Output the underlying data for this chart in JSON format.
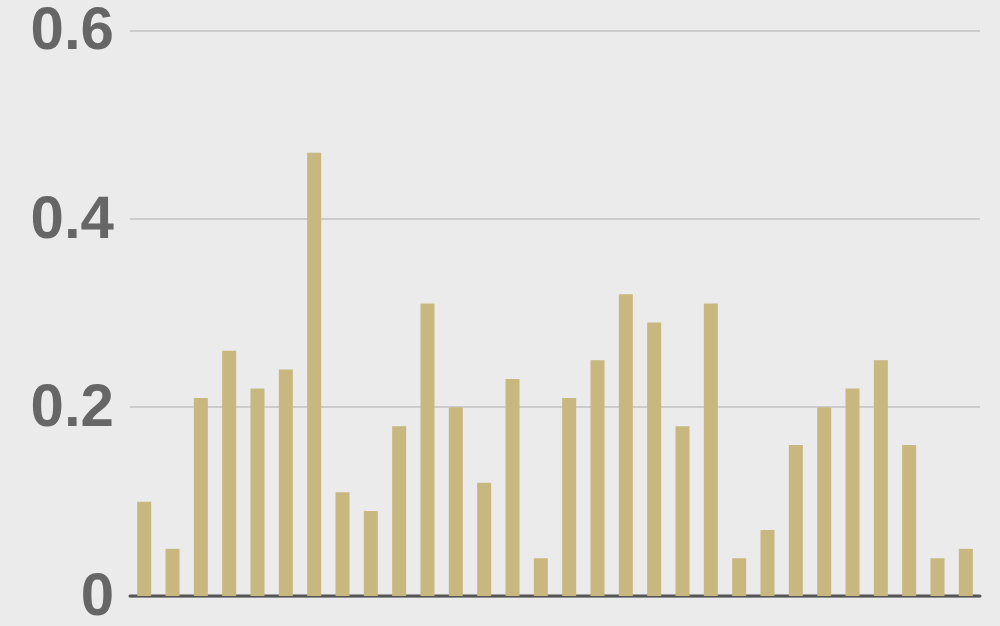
{
  "chart_data": {
    "type": "bar",
    "categories": [
      null,
      null,
      null,
      null,
      null,
      null,
      null,
      null,
      null,
      null,
      null,
      null,
      null,
      null,
      null,
      null,
      null,
      null,
      null,
      null,
      null,
      null,
      null,
      null,
      null,
      null,
      null,
      null,
      null,
      null
    ],
    "values": [
      0.1,
      0.05,
      0.21,
      0.26,
      0.22,
      0.24,
      0.47,
      0.11,
      0.09,
      0.18,
      0.31,
      0.2,
      0.12,
      0.23,
      0.04,
      0.21,
      0.25,
      0.32,
      0.29,
      0.18,
      0.31,
      0.04,
      0.07,
      0.16,
      0.2,
      0.22,
      0.25,
      0.16,
      0.04,
      0.05
    ],
    "color": "#c8b77e",
    "ylim": [
      0,
      0.6
    ],
    "yticks": [
      0,
      0.2,
      0.4,
      0.6
    ],
    "grid": "y",
    "tick_labels": "y"
  }
}
